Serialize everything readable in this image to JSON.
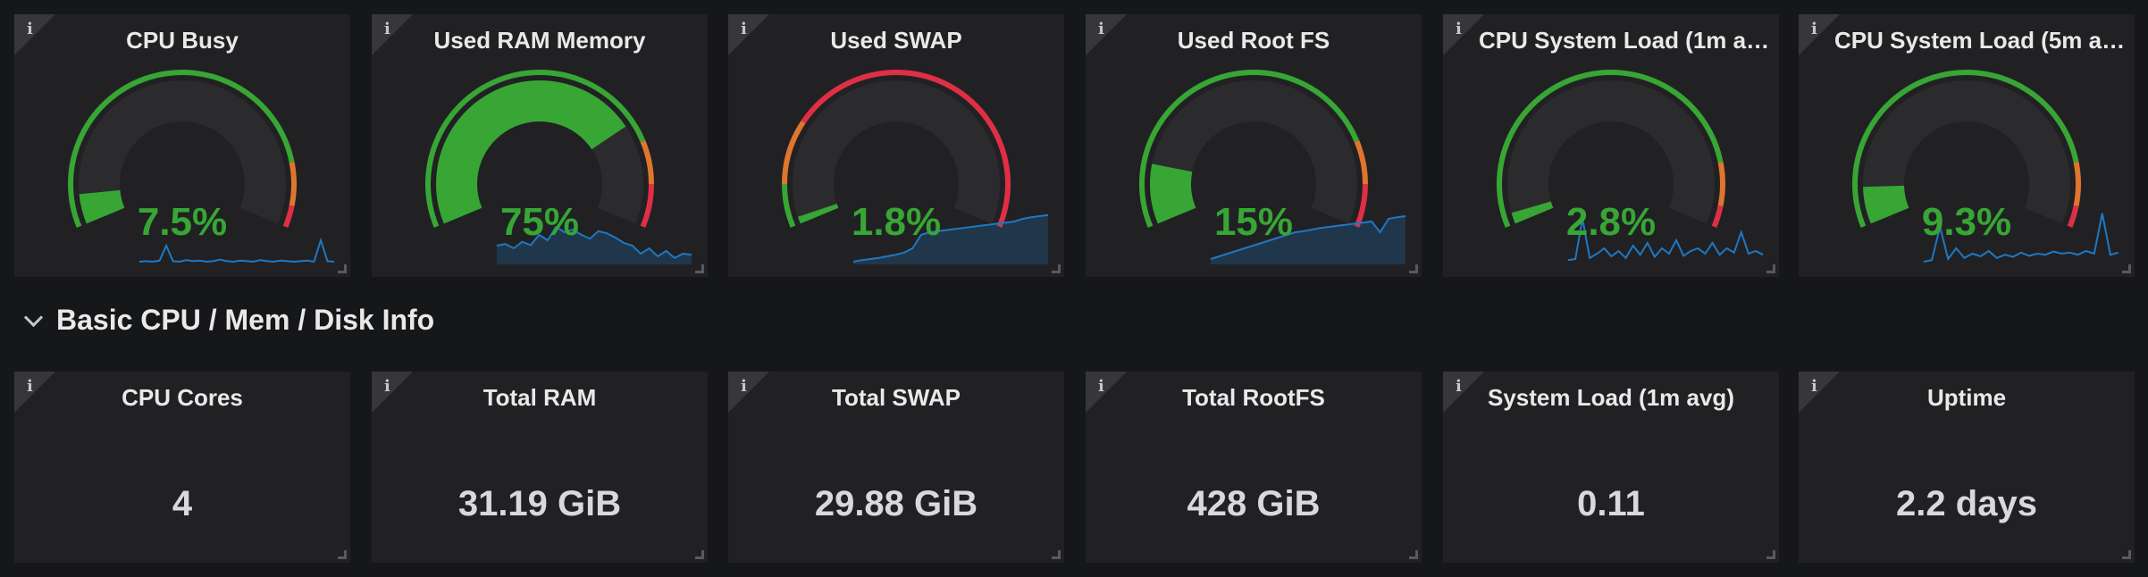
{
  "gauges": [
    {
      "title": "CPU Busy",
      "value_text": "7.5%",
      "value": 7.5,
      "max": 100,
      "thresholds": [
        85,
        95
      ],
      "spark": [
        0.05,
        0.06,
        0.05,
        0.07,
        0.35,
        0.06,
        0.05,
        0.08,
        0.06,
        0.07,
        0.05,
        0.06,
        0.09,
        0.06,
        0.05,
        0.07,
        0.06,
        0.05,
        0.08,
        0.06,
        0.05,
        0.07,
        0.06,
        0.05,
        0.06,
        0.07,
        0.05,
        0.45,
        0.06,
        0.05
      ],
      "spark_fill": false
    },
    {
      "title": "Used RAM Memory",
      "value_text": "75%",
      "value": 75,
      "max": 100,
      "thresholds": [
        80,
        90
      ],
      "spark": [
        0.35,
        0.38,
        0.3,
        0.42,
        0.36,
        0.55,
        0.45,
        0.7,
        0.6,
        0.65,
        0.55,
        0.48,
        0.62,
        0.58,
        0.5,
        0.4,
        0.35,
        0.2,
        0.3,
        0.15,
        0.25,
        0.12,
        0.2,
        0.18
      ],
      "spark_fill": true
    },
    {
      "title": "Used SWAP",
      "value_text": "1.8%",
      "value": 1.8,
      "max": 100,
      "thresholds": [
        10,
        25
      ],
      "spark": [
        0.05,
        0.08,
        0.1,
        0.12,
        0.15,
        0.18,
        0.22,
        0.3,
        0.55,
        0.6,
        0.62,
        0.64,
        0.66,
        0.68,
        0.7,
        0.72,
        0.74,
        0.76,
        0.78,
        0.8,
        0.85,
        0.88,
        0.9,
        0.92
      ],
      "spark_fill": true
    },
    {
      "title": "Used Root FS",
      "value_text": "15%",
      "value": 15,
      "max": 100,
      "thresholds": [
        80,
        90
      ],
      "spark": [
        0.1,
        0.15,
        0.2,
        0.25,
        0.3,
        0.35,
        0.4,
        0.45,
        0.5,
        0.55,
        0.6,
        0.62,
        0.65,
        0.68,
        0.7,
        0.72,
        0.74,
        0.76,
        0.78,
        0.8,
        0.6,
        0.85,
        0.88,
        0.9
      ],
      "spark_fill": true
    },
    {
      "title": "CPU System Load (1m a…",
      "value_text": "2.8%",
      "value": 2.8,
      "max": 100,
      "thresholds": [
        85,
        95
      ],
      "spark": [
        0.08,
        0.1,
        0.85,
        0.12,
        0.2,
        0.3,
        0.15,
        0.25,
        0.12,
        0.35,
        0.18,
        0.4,
        0.14,
        0.3,
        0.2,
        0.45,
        0.16,
        0.25,
        0.3,
        0.2,
        0.4,
        0.18,
        0.3,
        0.22,
        0.6,
        0.2,
        0.25,
        0.18
      ],
      "spark_fill": false
    },
    {
      "title": "CPU System Load (5m a…",
      "value_text": "9.3%",
      "value": 9.3,
      "max": 100,
      "thresholds": [
        85,
        95
      ],
      "spark": [
        0.05,
        0.08,
        0.7,
        0.1,
        0.3,
        0.12,
        0.2,
        0.15,
        0.25,
        0.12,
        0.18,
        0.14,
        0.22,
        0.16,
        0.2,
        0.18,
        0.24,
        0.2,
        0.22,
        0.18,
        0.25,
        0.2,
        0.95,
        0.18,
        0.22
      ],
      "spark_fill": false
    }
  ],
  "row": {
    "title": "Basic CPU / Mem / Disk Info"
  },
  "stats": [
    {
      "title": "CPU Cores",
      "value": "4"
    },
    {
      "title": "Total RAM",
      "value": "31.19 GiB"
    },
    {
      "title": "Total SWAP",
      "value": "29.88 GiB"
    },
    {
      "title": "Total RootFS",
      "value": "428 GiB"
    },
    {
      "title": "System Load (1m avg)",
      "value": "0.11"
    },
    {
      "title": "Uptime",
      "value": "2.2 days"
    }
  ],
  "colors": {
    "green": "#37a634",
    "orange": "#e0752d",
    "red": "#e02f44",
    "spark": "#1f78c1"
  },
  "icons": {
    "info": "info-icon",
    "chevron": "chevron-down-icon",
    "resize": "resize-handle-icon"
  },
  "info_glyph": "i"
}
